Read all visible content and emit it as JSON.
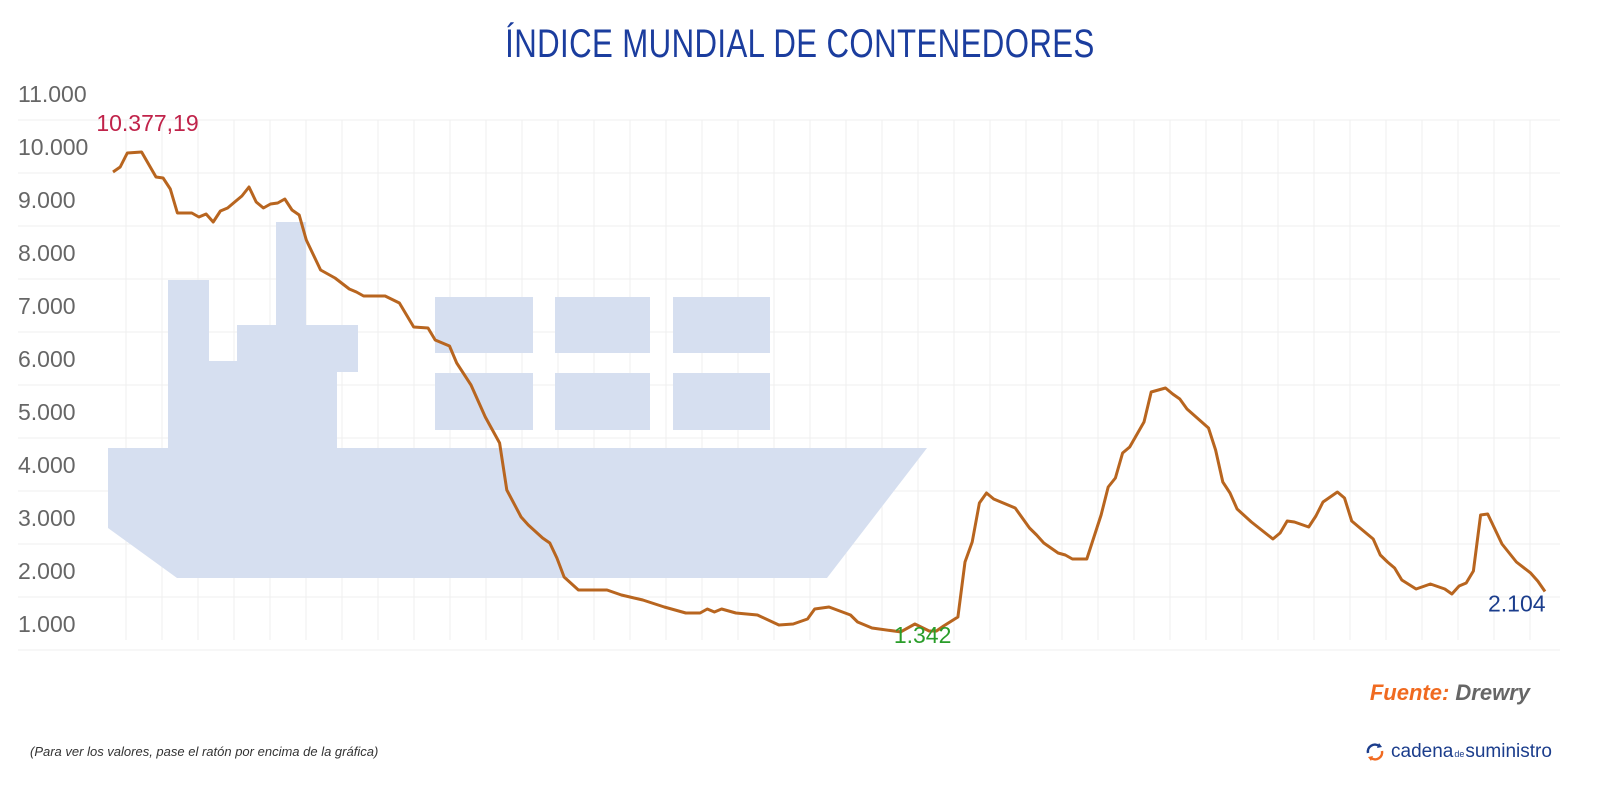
{
  "chart_data": {
    "type": "line",
    "title": "ÍNDICE MUNDIAL DE CONTENEDORES",
    "xlabel": "",
    "ylabel": "",
    "ylim": [
      1000,
      11000
    ],
    "yticks": [
      1000,
      2000,
      3000,
      4000,
      5000,
      6000,
      7000,
      8000,
      9000,
      10000,
      11000
    ],
    "ytick_labels": [
      "1.000",
      "2.000",
      "3.000",
      "4.000",
      "5.000",
      "6.000",
      "7.000",
      "8.000",
      "9.000",
      "10.000",
      "11.000"
    ],
    "grid": true,
    "xlim": [
      0,
      200
    ],
    "x": [
      0,
      1,
      2,
      4,
      6,
      7,
      8,
      9,
      11,
      12,
      13,
      14,
      15,
      16,
      17,
      18,
      19,
      20,
      21,
      22,
      23,
      24,
      25,
      26,
      27,
      29,
      31,
      33,
      34,
      35,
      38,
      40,
      42,
      44,
      45,
      47,
      48,
      50,
      52,
      54,
      55,
      57,
      58,
      60,
      61,
      62,
      63,
      65,
      69,
      71,
      74,
      77,
      80,
      82,
      83,
      84,
      85,
      87,
      90,
      93,
      95,
      97,
      98,
      100,
      103,
      104,
      106,
      110,
      112,
      114,
      115,
      116,
      118,
      119,
      120,
      121,
      122,
      123,
      126,
      128,
      129,
      130,
      132,
      133,
      134,
      136,
      138,
      139,
      140,
      141,
      142,
      144,
      145,
      147,
      148,
      149,
      150,
      153,
      154,
      155,
      156,
      157,
      159,
      162,
      163,
      164,
      165,
      167,
      168,
      169,
      171,
      172,
      173,
      174,
      176,
      177,
      178,
      179,
      180,
      182,
      184,
      186,
      187,
      188,
      189,
      190,
      191,
      192,
      194,
      196,
      198,
      199,
      200
    ],
    "values": [
      10019,
      10113,
      10377,
      10396,
      9925,
      9906,
      9698,
      9245,
      9245,
      9170,
      9226,
      9075,
      9283,
      9340,
      9453,
      9566,
      9736,
      9453,
      9340,
      9415,
      9434,
      9509,
      9302,
      9208,
      8736,
      8170,
      8019,
      7811,
      7755,
      7679,
      7679,
      7547,
      7094,
      7075,
      6849,
      6736,
      6415,
      6000,
      5396,
      4906,
      4019,
      3509,
      3358,
      3113,
      3019,
      2736,
      2377,
      2132,
      2132,
      2038,
      1943,
      1811,
      1698,
      1698,
      1774,
      1717,
      1774,
      1698,
      1660,
      1472,
      1491,
      1585,
      1774,
      1811,
      1660,
      1528,
      1415,
      1342,
      1491,
      1358,
      1358,
      1453,
      1623,
      2660,
      3038,
      3774,
      3962,
      3849,
      3679,
      3302,
      3170,
      3019,
      2830,
      2792,
      2717,
      2717,
      3547,
      4075,
      4245,
      4717,
      4830,
      5302,
      5868,
      5943,
      5830,
      5736,
      5547,
      5189,
      4774,
      4170,
      3962,
      3660,
      3415,
      3094,
      3208,
      3434,
      3415,
      3321,
      3528,
      3792,
      3981,
      3868,
      3434,
      3321,
      3094,
      2792,
      2660,
      2547,
      2321,
      2151,
      2245,
      2151,
      2057,
      2208,
      2264,
      2491,
      3547,
      3566,
      3000,
      2660,
      2450,
      2300,
      2104
    ],
    "annotations": [
      {
        "text": "10.377,19",
        "x": 2,
        "y": 10377.19,
        "color": "#c0234a"
      },
      {
        "text": "1.342",
        "x": 110,
        "y": 1342,
        "color": "#2a9d2a"
      },
      {
        "text": "2.104",
        "x": 200,
        "y": 2104,
        "color": "#1b3d8c"
      }
    ],
    "colors": {
      "line": "#b8651f",
      "grid": "#efefef",
      "ship": "#d6dff0",
      "title": "#1b3d9e"
    }
  },
  "source": {
    "label": "Fuente:",
    "name": "Drewry",
    "label_color": "#f06a20",
    "name_color": "#666666"
  },
  "note": "(Para ver los valores, pase el ratón por encima de la gráfica)",
  "logo": {
    "part1": "cadena",
    "part2": "de",
    "part3": "suministro",
    "icon": "cycle-arrows-icon"
  }
}
